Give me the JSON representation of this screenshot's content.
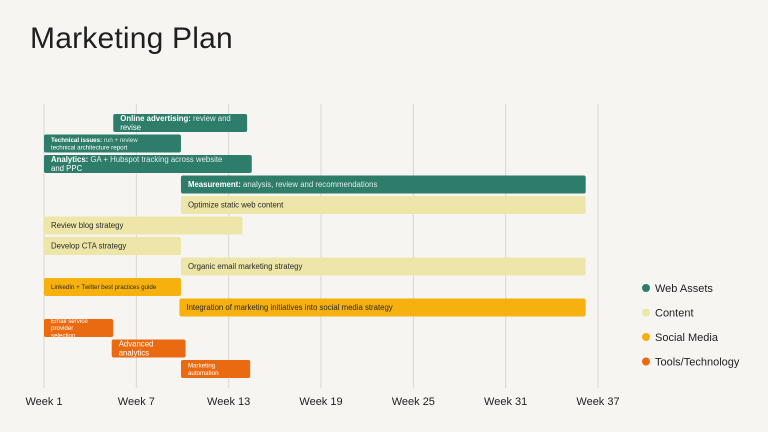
{
  "title": "Marketing Plan",
  "chart_data": {
    "type": "gantt",
    "title": "Marketing Plan",
    "x_ticks": [
      "Week 1",
      "Week 7",
      "Week 13",
      "Week 19",
      "Week 25",
      "Week 31",
      "Week 37"
    ],
    "x_tick_values": [
      1,
      7,
      13,
      19,
      25,
      31,
      37
    ],
    "xlim": [
      1,
      37
    ],
    "grid": true,
    "legend_position": "right",
    "categories": [
      {
        "key": "web",
        "name": "Web Assets",
        "color": "#2e7d6b"
      },
      {
        "key": "content",
        "name": "Content",
        "color": "#ede6a8"
      },
      {
        "key": "social",
        "name": "Social Media",
        "color": "#f6b10f"
      },
      {
        "key": "tools",
        "name": "Tools/Technology",
        "color": "#ea6a12"
      }
    ],
    "tasks": [
      {
        "bold": "Online advertising:",
        "text": " review and revise",
        "category": "web",
        "start": 5.5,
        "end": 14.2
      },
      {
        "bold": "Technical issues:",
        "text": " run + review technical architecture report",
        "category": "web",
        "start": 1.0,
        "end": 9.9,
        "small": true
      },
      {
        "bold": "Analytics:",
        "text": " GA + Hubspot tracking across website and PPC",
        "category": "web",
        "start": 1.0,
        "end": 14.5
      },
      {
        "bold": "Measurement:",
        "text": " analysis, review and recommendations",
        "category": "web",
        "start": 9.9,
        "end": 36.2
      },
      {
        "bold": "",
        "text": "Optimize static web content",
        "category": "content",
        "start": 9.9,
        "end": 36.2
      },
      {
        "bold": "",
        "text": "Review blog strategy",
        "category": "content",
        "start": 1.0,
        "end": 13.9
      },
      {
        "bold": "",
        "text": "Develop CTA strategy",
        "category": "content",
        "start": 1.0,
        "end": 9.9
      },
      {
        "bold": "",
        "text": "Organic email marketing strategy",
        "category": "content",
        "start": 9.9,
        "end": 36.2
      },
      {
        "bold": "",
        "text": "LinkedIn + Twitter best practices guide",
        "category": "social",
        "start": 1.0,
        "end": 9.9,
        "small": true
      },
      {
        "bold": "",
        "text": "Integration of marketing initiatives into social media strategy",
        "category": "social",
        "start": 9.8,
        "end": 36.2
      },
      {
        "bold": "",
        "text": "Email service provider selection",
        "category": "tools",
        "start": 1.0,
        "end": 5.5,
        "small": true
      },
      {
        "bold": "",
        "text": "Advanced analytics",
        "category": "tools",
        "start": 5.4,
        "end": 10.2
      },
      {
        "bold": "",
        "text": "Marketing automation",
        "category": "tools",
        "start": 9.9,
        "end": 14.4,
        "small": true
      }
    ]
  }
}
